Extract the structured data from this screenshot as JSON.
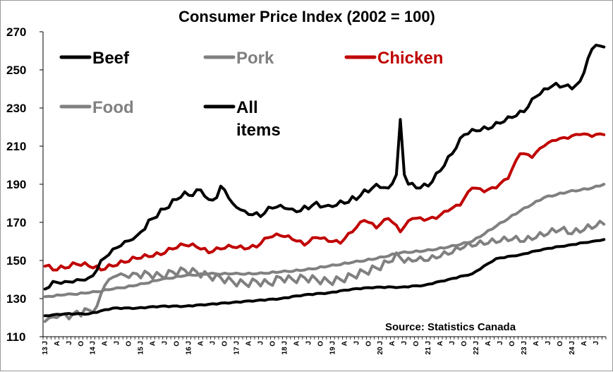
{
  "chart_data": {
    "type": "line",
    "title": "Consumer Price Index (2002 = 100)",
    "source": "Source: Statistics Canada",
    "ylim": [
      110,
      270
    ],
    "yticks": [
      110,
      130,
      150,
      170,
      190,
      210,
      230,
      250,
      270
    ],
    "grid": false,
    "legend_placement": "top-left",
    "x_start": "2013-01",
    "x_end": "2024-09",
    "x_tick_labels": [
      "13 J",
      "A",
      "J",
      "O",
      "14 J",
      "A",
      "J",
      "O",
      "15 J",
      "A",
      "J",
      "O",
      "16 J",
      "A",
      "J",
      "O",
      "17 J",
      "A",
      "J",
      "O",
      "18 J",
      "A",
      "J",
      "O",
      "19 J",
      "A",
      "J",
      "O",
      "20 J",
      "A",
      "J",
      "O",
      "21 J",
      "A",
      "J",
      "O",
      "22 J",
      "A",
      "J",
      "O",
      "23 J",
      "A",
      "J",
      "O",
      "24 J",
      "A",
      "J"
    ],
    "series": [
      {
        "name": "Beef",
        "color": "#000000",
        "legend_row": 0,
        "legend_col": 0,
        "anchors": [
          [
            "2013-01",
            135
          ],
          [
            "2013-03",
            139
          ],
          [
            "2013-06",
            139
          ],
          [
            "2013-09",
            140
          ],
          [
            "2013-12",
            141
          ],
          [
            "2014-01",
            142
          ],
          [
            "2014-03",
            150
          ],
          [
            "2014-06",
            156
          ],
          [
            "2014-09",
            160
          ],
          [
            "2014-12",
            163
          ],
          [
            "2015-01",
            165
          ],
          [
            "2015-04",
            172
          ],
          [
            "2015-07",
            177
          ],
          [
            "2015-10",
            182
          ],
          [
            "2015-12",
            186
          ],
          [
            "2016-02",
            184
          ],
          [
            "2016-04",
            187
          ],
          [
            "2016-06",
            182
          ],
          [
            "2016-08",
            183
          ],
          [
            "2016-09",
            189
          ],
          [
            "2016-10",
            187
          ],
          [
            "2016-12",
            180
          ],
          [
            "2017-03",
            176
          ],
          [
            "2017-05",
            174
          ],
          [
            "2017-07",
            173
          ],
          [
            "2017-09",
            178
          ],
          [
            "2017-12",
            179
          ],
          [
            "2018-03",
            177
          ],
          [
            "2018-05",
            176
          ],
          [
            "2018-08",
            179
          ],
          [
            "2018-12",
            179
          ],
          [
            "2019-04",
            180
          ],
          [
            "2019-08",
            184
          ],
          [
            "2019-12",
            190
          ],
          [
            "2020-03",
            188
          ],
          [
            "2020-05",
            195
          ],
          [
            "2020-06",
            224
          ],
          [
            "2020-07",
            195
          ],
          [
            "2020-08",
            190
          ],
          [
            "2020-10",
            188
          ],
          [
            "2021-01",
            189
          ],
          [
            "2021-04",
            197
          ],
          [
            "2021-07",
            206
          ],
          [
            "2021-10",
            216
          ],
          [
            "2022-01",
            218
          ],
          [
            "2022-04",
            219
          ],
          [
            "2022-07",
            222
          ],
          [
            "2022-10",
            225
          ],
          [
            "2023-01",
            228
          ],
          [
            "2023-04",
            236
          ],
          [
            "2023-07",
            240
          ],
          [
            "2023-09",
            243
          ],
          [
            "2024-01",
            240
          ],
          [
            "2024-03",
            244
          ],
          [
            "2024-05",
            256
          ],
          [
            "2024-07",
            263
          ],
          [
            "2024-09",
            262
          ]
        ]
      },
      {
        "name": "Pork",
        "color": "#808080",
        "legend_row": 0,
        "legend_col": 1,
        "anchors": [
          [
            "2013-01",
            118
          ],
          [
            "2013-04",
            120
          ],
          [
            "2013-08",
            122
          ],
          [
            "2013-12",
            124
          ],
          [
            "2014-02",
            126
          ],
          [
            "2014-04",
            137
          ],
          [
            "2014-07",
            142
          ],
          [
            "2014-10",
            141
          ],
          [
            "2014-12",
            143
          ],
          [
            "2015-03",
            143
          ],
          [
            "2015-06",
            142
          ],
          [
            "2015-09",
            144
          ],
          [
            "2015-12",
            145
          ],
          [
            "2016-03",
            144
          ],
          [
            "2016-06",
            142
          ],
          [
            "2016-09",
            141
          ],
          [
            "2016-12",
            139
          ],
          [
            "2017-03",
            138
          ],
          [
            "2017-06",
            139
          ],
          [
            "2017-09",
            138
          ],
          [
            "2017-12",
            141
          ],
          [
            "2018-03",
            140
          ],
          [
            "2018-06",
            141
          ],
          [
            "2018-09",
            140
          ],
          [
            "2018-12",
            139
          ],
          [
            "2019-03",
            140
          ],
          [
            "2019-06",
            142
          ],
          [
            "2019-09",
            144
          ],
          [
            "2019-12",
            146
          ],
          [
            "2020-03",
            149
          ],
          [
            "2020-05",
            154
          ],
          [
            "2020-07",
            149
          ],
          [
            "2020-10",
            150
          ],
          [
            "2021-01",
            150
          ],
          [
            "2021-04",
            152
          ],
          [
            "2021-07",
            154
          ],
          [
            "2021-10",
            157
          ],
          [
            "2022-01",
            158
          ],
          [
            "2022-04",
            159
          ],
          [
            "2022-07",
            160
          ],
          [
            "2022-10",
            161
          ],
          [
            "2023-01",
            160
          ],
          [
            "2023-04",
            162
          ],
          [
            "2023-07",
            164
          ],
          [
            "2023-10",
            166
          ],
          [
            "2024-01",
            164
          ],
          [
            "2024-04",
            166
          ],
          [
            "2024-07",
            168
          ],
          [
            "2024-09",
            169
          ]
        ]
      },
      {
        "name": "Chicken",
        "color": "#c00000",
        "legend_row": 0,
        "legend_col": 2,
        "anchors": [
          [
            "2013-01",
            147
          ],
          [
            "2013-03",
            145
          ],
          [
            "2013-06",
            146
          ],
          [
            "2013-09",
            148
          ],
          [
            "2013-12",
            147
          ],
          [
            "2014-03",
            145
          ],
          [
            "2014-06",
            147
          ],
          [
            "2014-09",
            149
          ],
          [
            "2014-12",
            151
          ],
          [
            "2015-03",
            152
          ],
          [
            "2015-06",
            153
          ],
          [
            "2015-09",
            156
          ],
          [
            "2015-12",
            158
          ],
          [
            "2016-03",
            157
          ],
          [
            "2016-06",
            154
          ],
          [
            "2016-09",
            156
          ],
          [
            "2016-12",
            157
          ],
          [
            "2017-03",
            156
          ],
          [
            "2017-06",
            157
          ],
          [
            "2017-09",
            162
          ],
          [
            "2017-12",
            163
          ],
          [
            "2018-03",
            161
          ],
          [
            "2018-06",
            158
          ],
          [
            "2018-09",
            162
          ],
          [
            "2018-12",
            160
          ],
          [
            "2019-03",
            159
          ],
          [
            "2019-06",
            165
          ],
          [
            "2019-09",
            171
          ],
          [
            "2019-12",
            167
          ],
          [
            "2020-03",
            172
          ],
          [
            "2020-06",
            165
          ],
          [
            "2020-09",
            172
          ],
          [
            "2020-12",
            171
          ],
          [
            "2021-03",
            172
          ],
          [
            "2021-06",
            176
          ],
          [
            "2021-09",
            179
          ],
          [
            "2021-12",
            188
          ],
          [
            "2022-03",
            186
          ],
          [
            "2022-06",
            188
          ],
          [
            "2022-09",
            193
          ],
          [
            "2022-12",
            206
          ],
          [
            "2023-03",
            204
          ],
          [
            "2023-06",
            210
          ],
          [
            "2023-09",
            213
          ],
          [
            "2023-12",
            214
          ],
          [
            "2024-03",
            216
          ],
          [
            "2024-06",
            215
          ],
          [
            "2024-09",
            216
          ]
        ]
      },
      {
        "name": "Food",
        "color": "#808080",
        "legend_row": 1,
        "legend_col": 0,
        "anchors": [
          [
            "2013-01",
            131
          ],
          [
            "2013-06",
            132
          ],
          [
            "2013-12",
            133
          ],
          [
            "2014-06",
            135
          ],
          [
            "2014-12",
            137
          ],
          [
            "2015-06",
            140
          ],
          [
            "2015-12",
            142
          ],
          [
            "2016-06",
            143
          ],
          [
            "2016-12",
            143
          ],
          [
            "2017-06",
            143
          ],
          [
            "2017-12",
            144
          ],
          [
            "2018-06",
            145
          ],
          [
            "2018-12",
            147
          ],
          [
            "2019-06",
            149
          ],
          [
            "2019-12",
            151
          ],
          [
            "2020-06",
            154
          ],
          [
            "2020-12",
            155
          ],
          [
            "2021-06",
            157
          ],
          [
            "2021-12",
            160
          ],
          [
            "2022-06",
            168
          ],
          [
            "2022-12",
            176
          ],
          [
            "2023-06",
            183
          ],
          [
            "2023-12",
            186
          ],
          [
            "2024-06",
            188
          ],
          [
            "2024-09",
            190
          ]
        ]
      },
      {
        "name": "All items",
        "name_lines": [
          "All",
          "items"
        ],
        "color": "#000000",
        "legend_row": 1,
        "legend_col": 1,
        "anchors": [
          [
            "2013-01",
            121
          ],
          [
            "2013-06",
            122
          ],
          [
            "2013-12",
            122
          ],
          [
            "2014-06",
            125
          ],
          [
            "2014-12",
            125
          ],
          [
            "2015-06",
            126
          ],
          [
            "2015-12",
            126
          ],
          [
            "2016-06",
            127
          ],
          [
            "2016-12",
            128
          ],
          [
            "2017-06",
            129
          ],
          [
            "2017-12",
            130
          ],
          [
            "2018-06",
            132
          ],
          [
            "2018-12",
            133
          ],
          [
            "2019-06",
            135
          ],
          [
            "2019-12",
            136
          ],
          [
            "2020-06",
            136
          ],
          [
            "2020-12",
            137
          ],
          [
            "2021-06",
            140
          ],
          [
            "2021-12",
            143
          ],
          [
            "2022-06",
            151
          ],
          [
            "2022-12",
            153
          ],
          [
            "2023-06",
            156
          ],
          [
            "2023-12",
            158
          ],
          [
            "2024-06",
            160
          ],
          [
            "2024-09",
            161
          ]
        ]
      }
    ]
  }
}
